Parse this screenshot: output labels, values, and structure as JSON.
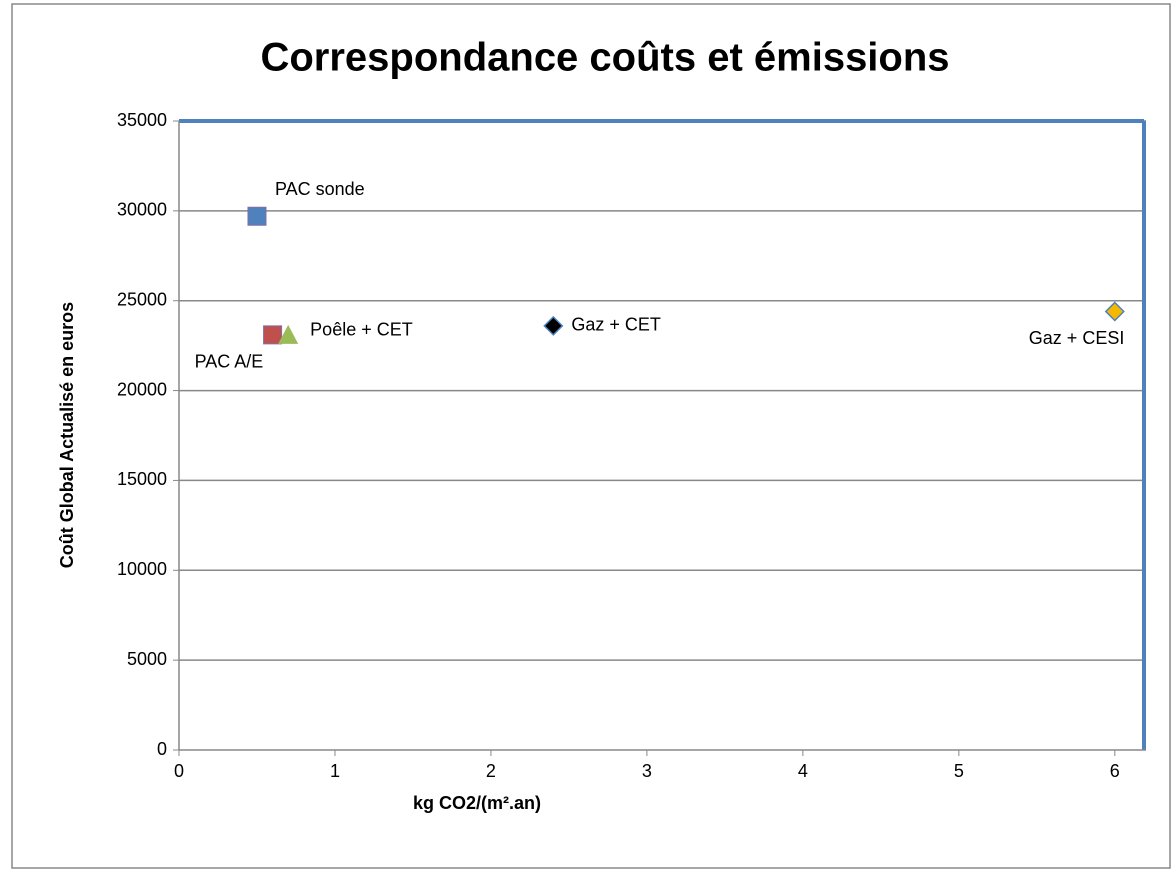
{
  "chart_data": {
    "type": "scatter",
    "title": "Correspondance coûts et émissions",
    "xlabel": "kg CO2/(m².an)",
    "ylabel": "Coût Global  Actualisé  en euros",
    "xlim": [
      0,
      6.2
    ],
    "ylim": [
      0,
      35000
    ],
    "xticks": [
      0,
      1,
      2,
      3,
      4,
      5,
      6
    ],
    "yticks": [
      0,
      5000,
      10000,
      15000,
      20000,
      25000,
      30000,
      35000
    ],
    "grid": true,
    "series": [
      {
        "name": "PAC sonde",
        "color": "#4f81bd",
        "marker": "square",
        "x": [
          0.5
        ],
        "values": [
          29700
        ]
      },
      {
        "name": "PAC A/E",
        "color": "#c0504d",
        "marker": "square",
        "x": [
          0.6
        ],
        "values": [
          23100
        ]
      },
      {
        "name": "Poêle + CET",
        "color": "#9bbb59",
        "marker": "triangle",
        "x": [
          0.7
        ],
        "values": [
          23100
        ]
      },
      {
        "name": "Gaz + CET",
        "color": "#000000",
        "marker": "diamond",
        "x": [
          2.4
        ],
        "values": [
          23600
        ]
      },
      {
        "name": "Gaz +  CESI",
        "color": "#f5b800",
        "marker": "diamond",
        "x": [
          6.0
        ],
        "values": [
          24400
        ]
      }
    ]
  }
}
